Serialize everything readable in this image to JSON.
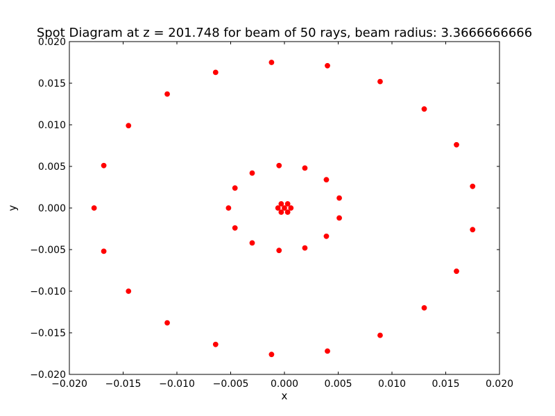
{
  "chart_data": {
    "type": "scatter",
    "title": "Spot Diagram at z = 201.748 for beam of 50 rays, beam radius: 3.3666666666",
    "xlabel": "x",
    "ylabel": "y",
    "xlim": [
      -0.02,
      0.02
    ],
    "ylim": [
      -0.02,
      0.02
    ],
    "xticks": [
      -0.02,
      -0.015,
      -0.01,
      -0.005,
      0.0,
      0.005,
      0.01,
      0.015,
      0.02
    ],
    "yticks": [
      -0.02,
      -0.015,
      -0.01,
      -0.005,
      0.0,
      0.005,
      0.01,
      0.015,
      0.02
    ],
    "xtick_labels": [
      "−0.020",
      "−0.015",
      "−0.010",
      "−0.005",
      "0.000",
      "0.005",
      "0.010",
      "0.015",
      "0.020"
    ],
    "ytick_labels": [
      "−0.020",
      "−0.015",
      "−0.010",
      "−0.005",
      "0.000",
      "0.005",
      "0.010",
      "0.015",
      "0.020"
    ],
    "grid": false,
    "marker_color": "#ff0000",
    "series": [
      {
        "x": [
          0.0,
          0.0006,
          0.0003,
          0.0003,
          -0.0003,
          -0.0003,
          -0.0006,
          0.0051,
          0.0051,
          0.0039,
          0.0039,
          0.0019,
          0.0019,
          -0.0005,
          -0.0005,
          -0.003,
          -0.003,
          -0.0046,
          -0.0046,
          -0.0052,
          0.0175,
          0.0175,
          0.016,
          0.016,
          0.013,
          0.013,
          0.0089,
          0.0089,
          0.004,
          0.004,
          -0.0012,
          -0.0012,
          -0.0064,
          -0.0064,
          -0.0109,
          -0.0109,
          -0.0145,
          -0.0145,
          -0.0168,
          -0.0168,
          -0.0177
        ],
        "y": [
          0.0,
          0.0,
          0.0005,
          -0.0005,
          0.0005,
          -0.0005,
          0.0,
          0.0012,
          -0.0012,
          0.0034,
          -0.0034,
          0.0048,
          -0.0048,
          0.0051,
          -0.0051,
          0.0042,
          -0.0042,
          0.0024,
          -0.0024,
          0.0,
          0.0026,
          -0.0026,
          0.0076,
          -0.0076,
          0.0119,
          -0.012,
          0.0152,
          -0.0153,
          0.0171,
          -0.0172,
          0.0175,
          -0.0176,
          0.0163,
          -0.0164,
          0.0137,
          -0.0138,
          0.0099,
          -0.01,
          0.0051,
          -0.0052,
          0.0
        ]
      }
    ]
  }
}
